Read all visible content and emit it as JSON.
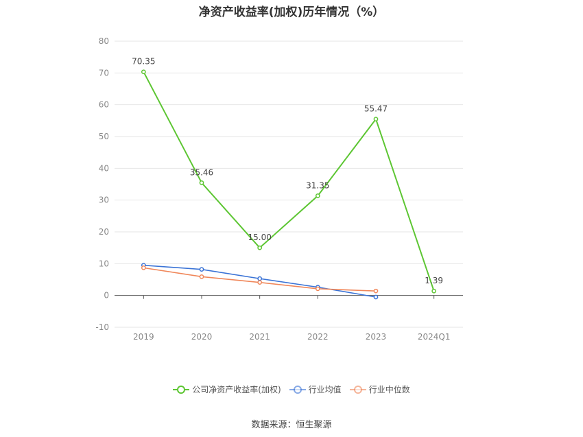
{
  "chart_data": {
    "type": "line",
    "title": "净资产收益率(加权)历年情况（%）",
    "categories": [
      "2019",
      "2020",
      "2021",
      "2022",
      "2023",
      "2024Q1"
    ],
    "ylim": [
      -10,
      80
    ],
    "yticks": [
      -10,
      0,
      10,
      20,
      30,
      40,
      50,
      60,
      70,
      80
    ],
    "grid": true,
    "legend_position": "bottom",
    "series": [
      {
        "name": "公司净资产收益率(加权)",
        "color": "#5dc633",
        "values": [
          70.35,
          35.46,
          15.0,
          31.35,
          55.47,
          1.39
        ],
        "labels": [
          "70.35",
          "35.46",
          "15.00",
          "31.35",
          "55.47",
          "1.39"
        ]
      },
      {
        "name": "行业均值",
        "color": "#3a73d6",
        "values": [
          9.5,
          8.2,
          5.3,
          2.6,
          -0.5,
          null
        ]
      },
      {
        "name": "行业中位数",
        "color": "#f0875a",
        "values": [
          8.7,
          5.9,
          4.1,
          2.1,
          1.4,
          null
        ]
      }
    ],
    "source": "数据来源：恒生聚源"
  }
}
